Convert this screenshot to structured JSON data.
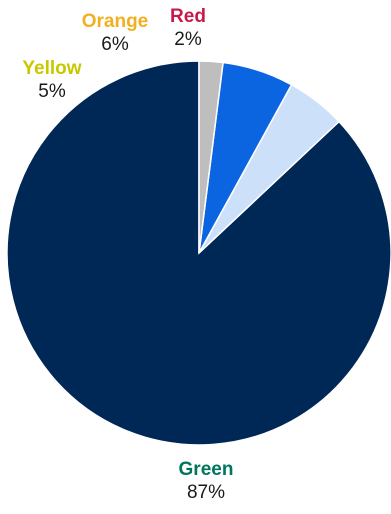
{
  "chart_data": {
    "type": "pie",
    "title": "",
    "start": "12 o'clock",
    "direction": "counterclockwise",
    "slices": [
      {
        "label": "Green",
        "value": 87,
        "value_label": "87%",
        "fill_color": "#002856",
        "label_color": "#00765E"
      },
      {
        "label": "Yellow",
        "value": 5,
        "value_label": "5%",
        "fill_color": "#CCE0FA",
        "label_color": "#C9C800"
      },
      {
        "label": "Orange",
        "value": 6,
        "value_label": "6%",
        "fill_color": "#0B65E0",
        "label_color": "#F2B021"
      },
      {
        "label": "Red",
        "value": 2,
        "value_label": "2%",
        "fill_color": "#BEBEBE",
        "label_color": "#C8194C"
      }
    ]
  }
}
